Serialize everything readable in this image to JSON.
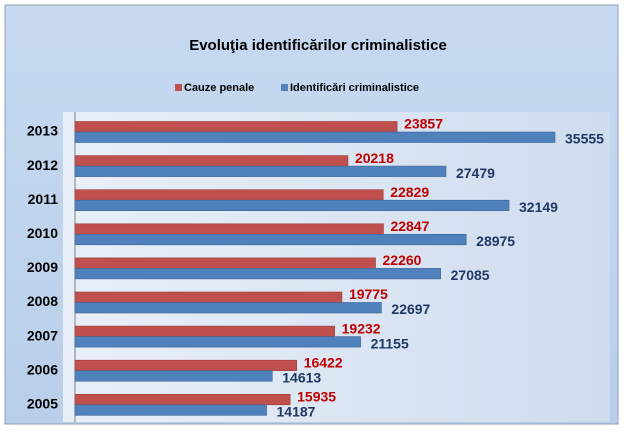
{
  "chart_data": {
    "type": "hbar",
    "title": "Evoluţia identificărilor criminalistice",
    "categories": [
      "2013",
      "2012",
      "2011",
      "2010",
      "2009",
      "2008",
      "2007",
      "2006",
      "2005"
    ],
    "series": [
      {
        "name": "Cauze penale",
        "color": "#c0504d",
        "label_color": "#c00000",
        "values": [
          23857,
          20218,
          22829,
          22847,
          22260,
          19775,
          19232,
          16422,
          15935
        ]
      },
      {
        "name": "Identificări criminalistice",
        "color": "#4f81bd",
        "label_color": "#1f3864",
        "values": [
          35555,
          27479,
          32149,
          28975,
          27085,
          22697,
          21155,
          14613,
          14187
        ]
      }
    ],
    "legend": "top"
  }
}
